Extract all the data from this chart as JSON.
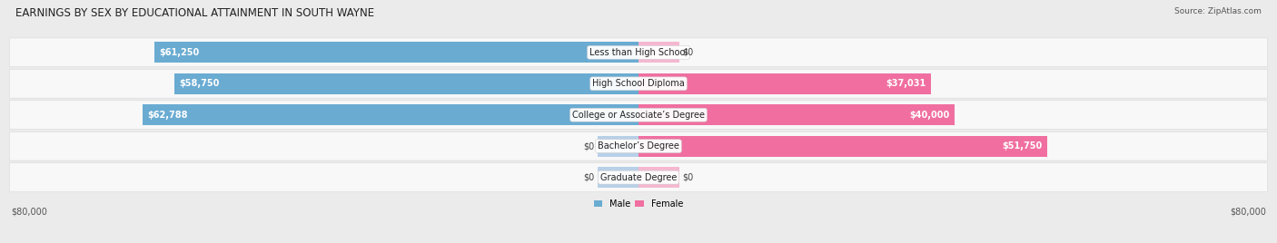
{
  "title": "EARNINGS BY SEX BY EDUCATIONAL ATTAINMENT IN SOUTH WAYNE",
  "source": "Source: ZipAtlas.com",
  "categories": [
    "Less than High School",
    "High School Diploma",
    "College or Associate’s Degree",
    "Bachelor’s Degree",
    "Graduate Degree"
  ],
  "male_values": [
    61250,
    58750,
    62788,
    0,
    0
  ],
  "female_values": [
    0,
    37031,
    40000,
    51750,
    0
  ],
  "male_labels": [
    "$61,250",
    "$58,750",
    "$62,788",
    "$0",
    "$0"
  ],
  "female_labels": [
    "$0",
    "$37,031",
    "$40,000",
    "$51,750",
    "$0"
  ],
  "male_color": "#6aabd2",
  "female_color": "#f06fa0",
  "male_color_light": "#b8d0e8",
  "female_color_light": "#f5b8d0",
  "max_value": 80000,
  "background_color": "#ebebeb",
  "row_bg_color": "#f8f8f8",
  "row_bg_edge": "#d8d8d8",
  "title_fontsize": 8.5,
  "label_fontsize": 7,
  "category_fontsize": 7,
  "axis_label_fontsize": 7,
  "source_fontsize": 6.5
}
